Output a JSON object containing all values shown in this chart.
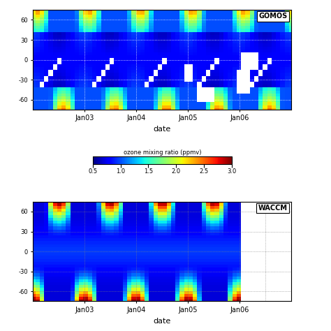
{
  "colormap": "jet",
  "vmin": 0.5,
  "vmax": 3.0,
  "cbar_label": "ozone mixing ratio (ppmv)",
  "cbar_ticks": [
    0.5,
    1,
    1.5,
    2,
    2.5,
    3
  ],
  "xlabel": "date",
  "xtick_labels": [
    "Jan03",
    "Jan04",
    "Jan05",
    "Jan06"
  ],
  "ytick_vals": [
    -60,
    -30,
    0,
    30,
    60
  ],
  "ytick_labels": [
    "-60",
    "-30",
    "0",
    "30",
    "60"
  ],
  "label_gomos": "GOMOS",
  "label_wacc": "WACCM",
  "bg_color": "#ffffff"
}
